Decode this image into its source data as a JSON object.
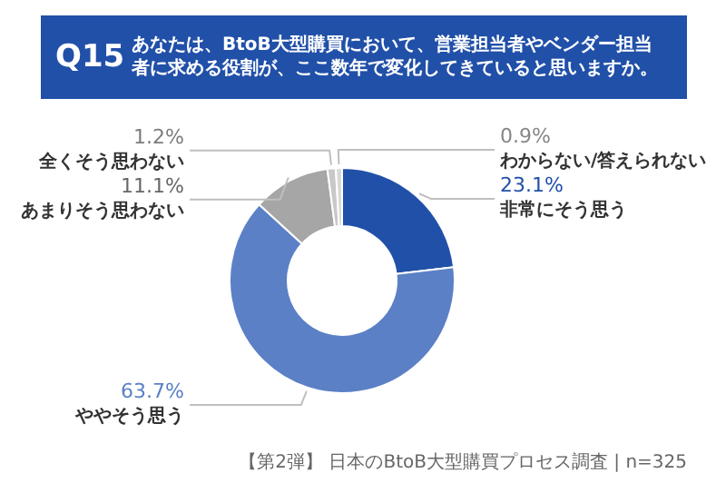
{
  "chart_data": {
    "type": "donut",
    "title": "Q15",
    "subtitle": "あなたは、BtoB大型購買において、営業担当者やベンダー担当者に求める役割が、ここ数年で変化してきていると思いますか。",
    "categories": [
      "非常にそう思う",
      "ややそう思う",
      "あまりそう思わない",
      "全くそう思わない",
      "わからない/答えられない"
    ],
    "values": [
      23.1,
      63.7,
      11.1,
      1.2,
      0.9
    ],
    "colors": [
      "#2150a8",
      "#5b80c6",
      "#a6a6a6",
      "#c8c8c8",
      "#d9d9d9"
    ],
    "value_labels": [
      "23.1%",
      "63.7%",
      "11.1%",
      "1.2%",
      "0.9%"
    ],
    "annotations": [
      "【第2弾】 日本のBtoB大型購買プロセス調査 | n=325"
    ]
  }
}
